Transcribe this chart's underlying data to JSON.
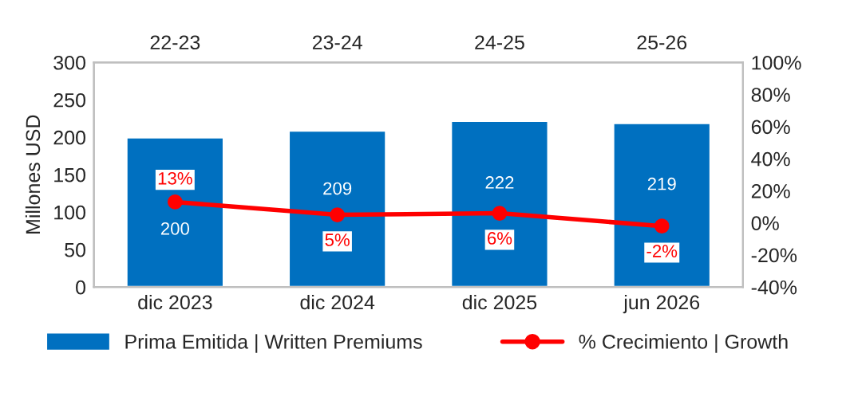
{
  "chart_data": {
    "type": "bar",
    "categories": [
      "dic 2023",
      "dic 2024",
      "dic 2025",
      "jun 2026"
    ],
    "ylabel": "Millones USD",
    "ylim": [
      0,
      300
    ],
    "yticks": [
      0,
      50,
      100,
      150,
      200,
      250,
      300
    ],
    "y2lim": [
      -40,
      100
    ],
    "y2ticks": [
      {
        "value": -40,
        "label": "-40%"
      },
      {
        "value": -20,
        "label": "-20%"
      },
      {
        "value": 0,
        "label": "0%"
      },
      {
        "value": 20,
        "label": "20%"
      },
      {
        "value": 40,
        "label": "40%"
      },
      {
        "value": 60,
        "label": "60%"
      },
      {
        "value": 80,
        "label": "80%"
      },
      {
        "value": 100,
        "label": "100%"
      }
    ],
    "series": [
      {
        "name": "Prima Emitida | Written Premiums",
        "color": "#0070c0",
        "values": [
          200,
          209,
          222,
          219
        ],
        "value_labels": [
          "200",
          "209",
          "222",
          "219"
        ]
      },
      {
        "name": "% Crecimiento | Growth",
        "type": "line",
        "axis": "y2",
        "color": "#ff0000",
        "marker": "circle",
        "values": [
          13,
          5,
          6,
          -2
        ],
        "value_labels": [
          "13%",
          "5%",
          "6%",
          "-2%"
        ]
      }
    ],
    "annotations": [
      "22-23",
      "23-24",
      "24-25",
      "25-26"
    ],
    "grid": false,
    "legend": "bottom"
  }
}
